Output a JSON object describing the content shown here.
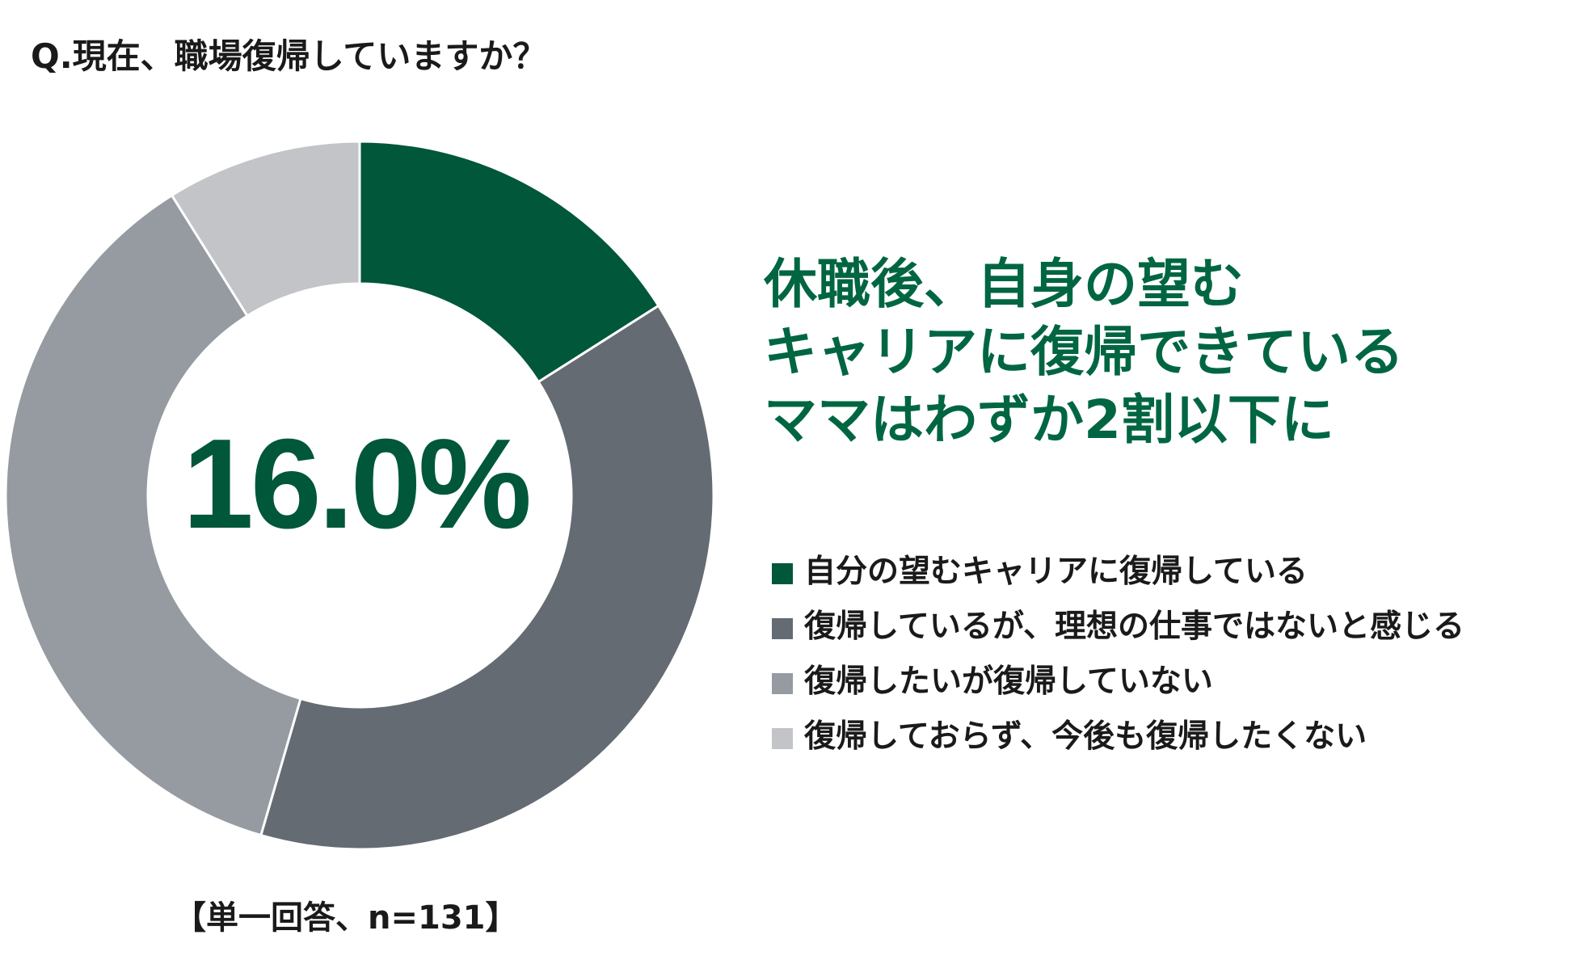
{
  "question": "Q.現在、職場復帰していますか？",
  "center_value": "16.0%",
  "headline": [
    "休職後、自身の望む",
    "キャリアに復帰できている",
    "ママはわずか2割以下に"
  ],
  "note": "【単一回答、n=131】",
  "chart_data": {
    "type": "pie",
    "donut": true,
    "categories": [
      "自分の望むキャリアに復帰している",
      "復帰しているが、理想の仕事ではないと感じる",
      "復帰したいが復帰していない",
      "復帰しておらず、今後も復帰したくない"
    ],
    "values": [
      16.0,
      38.5,
      36.6,
      8.9
    ],
    "colors": [
      "#00573a",
      "#646b72",
      "#959ba1",
      "#c2c4c7"
    ],
    "legend_position": "right"
  }
}
